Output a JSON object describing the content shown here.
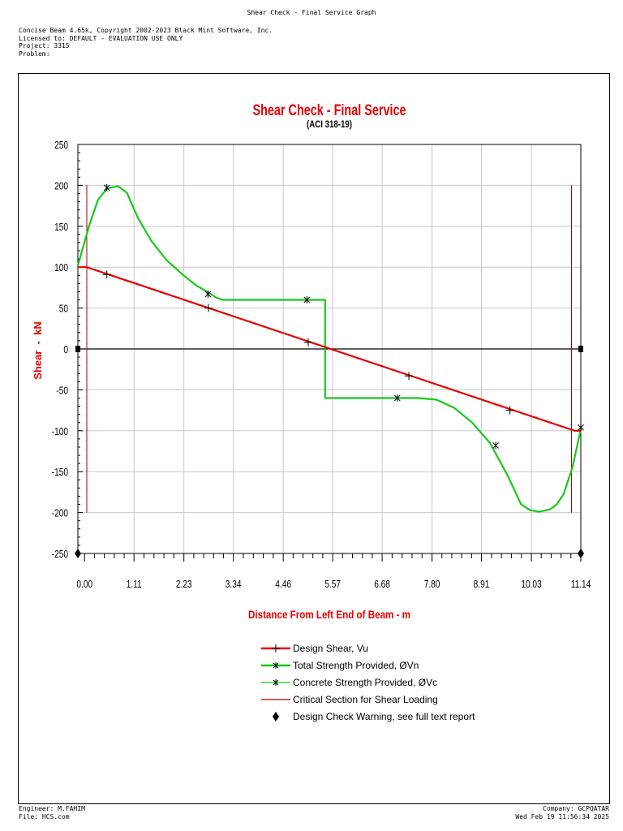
{
  "doc_title": "Shear Check - Final Service Graph",
  "header": {
    "line1": "Concise Beam 4.65k, Copyright 2002-2023 Black Mint Software, Inc.",
    "line2": "Licensed to: DEFAULT - EVALUATION USE ONLY",
    "line3": "Project: 3315",
    "line4": "Problem:"
  },
  "footer": {
    "engineer": "Engineer: M.FAHIM",
    "file": "File: HCS.com",
    "company": "Company: GCPQATAR",
    "date": "Wed Feb 19 11:56:34 2025"
  },
  "chart_data": {
    "type": "line",
    "title": "Shear Check - Final Service",
    "subtitle": "(ACI 318-19)",
    "xlabel": "Distance From Left End of Beam - m",
    "ylabel": "Shear  -  kN",
    "xlim": [
      -0.15,
      11.14
    ],
    "ylim": [
      -250,
      250
    ],
    "x_ticks": [
      0,
      1.11,
      2.23,
      3.34,
      4.46,
      5.57,
      6.68,
      7.8,
      8.91,
      10.03,
      11.14
    ],
    "x_tick_labels": [
      "0.00",
      "1.11",
      "2.23",
      "3.34",
      "4.46",
      "5.57",
      "6.68",
      "7.80",
      "8.91",
      "10.03",
      "11.14"
    ],
    "y_ticks": [
      250,
      200,
      150,
      100,
      50,
      0,
      -50,
      -100,
      -150,
      -200,
      -250
    ],
    "y_tick_labels": [
      "250",
      "200",
      "150",
      "100",
      "50",
      "0",
      "-50",
      "-100",
      "-150",
      "-200",
      "-250"
    ],
    "grid": true,
    "legend_position": "bottom",
    "colors": {
      "design_shear": "#e80000",
      "total_strength": "#19c819",
      "concrete_strength": "#19c819",
      "critical_section": "#a00000",
      "axis_text": "#000000",
      "title": "#e80000",
      "grid": "#c8c8c8"
    },
    "series": [
      {
        "name": "Design Shear, Vu",
        "style": "red-line-plus-markers",
        "x": [
          -0.15,
          0.05,
          11.0,
          11.14
        ],
        "y": [
          100,
          100,
          -100,
          -100
        ],
        "markers_x": [
          0.5,
          2.78,
          5.02,
          7.28,
          9.55
        ],
        "markers_y": [
          91,
          50,
          8,
          -33,
          -75
        ]
      },
      {
        "name": "Total Strength Provided, ØVn",
        "style": "green-line-star-markers",
        "x": [
          -0.15,
          0.1,
          0.3,
          0.5,
          0.65,
          0.75,
          0.95,
          1.2,
          1.5,
          1.85,
          2.2,
          2.5,
          2.75,
          2.95,
          3.1,
          5.4,
          5.4,
          7.5,
          7.9,
          8.3,
          8.7,
          9.1,
          9.5,
          9.8,
          10.0,
          10.2,
          10.3,
          10.45,
          10.6,
          10.75,
          10.95,
          11.14
        ],
        "y": [
          102,
          150,
          182,
          196,
          198,
          199,
          191,
          160,
          132,
          108,
          91,
          78,
          70,
          63,
          60,
          60,
          -60,
          -60,
          -62,
          -72,
          -90,
          -115,
          -155,
          -190,
          -197,
          -199,
          -198,
          -196,
          -190,
          -178,
          -145,
          -98
        ],
        "markers_x": [
          0.5,
          2.77,
          4.99,
          7.02,
          9.23,
          11.14
        ],
        "markers_y": [
          197,
          67,
          60,
          -60,
          -118,
          -96
        ]
      },
      {
        "name": "Concrete Strength Provided, ØVc",
        "style": "thin-green-line-star-markers",
        "x": [],
        "y": []
      },
      {
        "name": "Critical Section for Shear Loading",
        "style": "dark-red-vertical-lines",
        "x": [
          0.05,
          10.93
        ],
        "y_range": [
          -200,
          200
        ]
      },
      {
        "name": "Design Check Warning, see full text report",
        "style": "black-diamond-markers",
        "x": [
          -0.15,
          11.14
        ],
        "y": [
          -250,
          -250
        ]
      }
    ]
  }
}
